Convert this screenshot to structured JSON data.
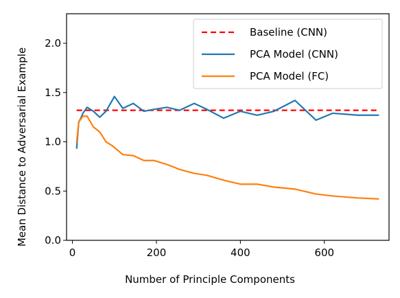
{
  "chart_data": {
    "type": "line",
    "title": "",
    "xlabel": "Number of Principle Components",
    "ylabel": "Mean Distance to Adversarial Example",
    "xlim": [
      -14,
      754
    ],
    "ylim": [
      0.0,
      2.3
    ],
    "xticks": [
      0,
      200,
      400,
      600
    ],
    "xtick_labels": [
      "0",
      "200",
      "400",
      "600"
    ],
    "yticks": [
      0.0,
      0.5,
      1.0,
      1.5,
      2.0
    ],
    "ytick_labels": [
      "0.0",
      "0.5",
      "1.0",
      "1.5",
      "2.0"
    ],
    "grid": false,
    "legend_position": "upper right",
    "series": [
      {
        "name": "Baseline (CNN)",
        "color": "#ff0000",
        "style": "dashed",
        "x": [
          10,
          730
        ],
        "y": [
          1.32,
          1.32
        ]
      },
      {
        "name": "PCA Model (CNN)",
        "color": "#1f77b4",
        "style": "solid",
        "x": [
          10,
          15,
          20,
          25,
          35,
          50,
          65,
          80,
          100,
          120,
          145,
          170,
          195,
          225,
          255,
          290,
          320,
          360,
          400,
          440,
          480,
          530,
          580,
          620,
          680,
          730
        ],
        "y": [
          0.93,
          1.2,
          1.24,
          1.29,
          1.35,
          1.31,
          1.25,
          1.31,
          1.46,
          1.34,
          1.39,
          1.31,
          1.33,
          1.35,
          1.32,
          1.39,
          1.33,
          1.24,
          1.31,
          1.27,
          1.31,
          1.42,
          1.22,
          1.29,
          1.27,
          1.27
        ]
      },
      {
        "name": "PCA Model (FC)",
        "color": "#ff7f0e",
        "style": "solid",
        "x": [
          10,
          15,
          20,
          25,
          35,
          50,
          65,
          80,
          95,
          120,
          145,
          170,
          195,
          225,
          255,
          290,
          320,
          360,
          400,
          440,
          480,
          530,
          580,
          620,
          680,
          730
        ],
        "y": [
          0.99,
          1.2,
          1.23,
          1.26,
          1.26,
          1.15,
          1.1,
          1.0,
          0.96,
          0.87,
          0.86,
          0.81,
          0.81,
          0.77,
          0.72,
          0.68,
          0.66,
          0.61,
          0.57,
          0.57,
          0.54,
          0.52,
          0.47,
          0.45,
          0.43,
          0.42
        ]
      }
    ]
  }
}
